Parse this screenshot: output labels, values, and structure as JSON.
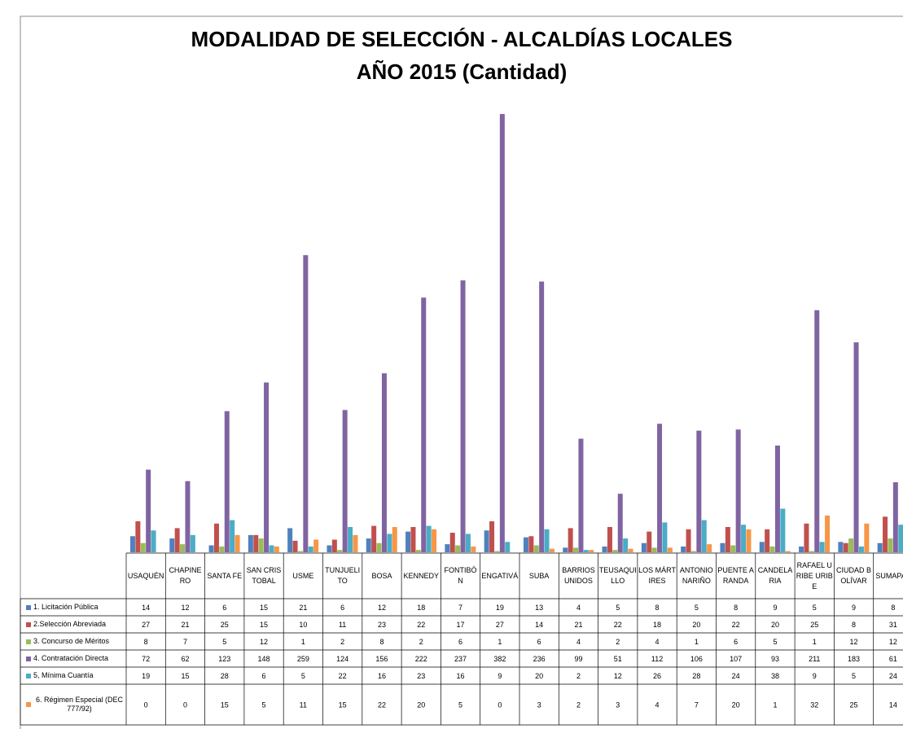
{
  "chart_data": {
    "type": "bar",
    "title": "MODALIDAD DE SELECCIÓN - ALCALDÍAS LOCALES",
    "subtitle": "AÑO 2015 (Cantidad)",
    "categories": [
      "USAQUÉN",
      "CHAPINERO",
      "SANTA FE",
      "SAN CRISTOBAL",
      "USME",
      "TUNJUELITO",
      "BOSA",
      "KENNEDY",
      "FONTIBÓN",
      "ENGATIVÁ",
      "SUBA",
      "BARRIOS UNIDOS",
      "TEUSAQUILLO",
      "LOS MÁRTIRES",
      "ANTONIO NARIÑO",
      "PUENTE ARANDA",
      "CANDELARIA",
      "RAFAEL URIBE URIBE",
      "CIUDAD BOLÍVAR",
      "SUMAPAZ"
    ],
    "series": [
      {
        "name": "1. Licitación Pública",
        "color": "#4f81bd",
        "values": [
          14,
          12,
          6,
          15,
          21,
          6,
          12,
          18,
          7,
          19,
          13,
          4,
          5,
          8,
          5,
          8,
          9,
          5,
          9,
          8
        ]
      },
      {
        "name": "2.Selección Abreviada",
        "color": "#c0504d",
        "values": [
          27,
          21,
          25,
          15,
          10,
          11,
          23,
          22,
          17,
          27,
          14,
          21,
          22,
          18,
          20,
          22,
          20,
          25,
          8,
          31
        ]
      },
      {
        "name": "3. Concurso de Méritos",
        "color": "#9bbb59",
        "values": [
          8,
          7,
          5,
          12,
          1,
          2,
          8,
          2,
          6,
          1,
          6,
          4,
          2,
          4,
          1,
          6,
          5,
          1,
          12,
          12
        ]
      },
      {
        "name": "4. Contratación Directa",
        "color": "#8064a2",
        "values": [
          72,
          62,
          123,
          148,
          259,
          124,
          156,
          222,
          237,
          382,
          236,
          99,
          51,
          112,
          106,
          107,
          93,
          211,
          183,
          61
        ]
      },
      {
        "name": "5, Mínima Cuantía",
        "color": "#4bacc6",
        "values": [
          19,
          15,
          28,
          6,
          5,
          22,
          16,
          23,
          16,
          9,
          20,
          2,
          12,
          26,
          28,
          24,
          38,
          9,
          5,
          24
        ]
      },
      {
        "name": "6. Régimen Especial (DEC 777/92)",
        "color": "#f79646",
        "values": [
          0,
          0,
          15,
          5,
          11,
          15,
          22,
          20,
          5,
          0,
          3,
          2,
          3,
          4,
          7,
          20,
          1,
          32,
          25,
          14
        ]
      }
    ]
  }
}
